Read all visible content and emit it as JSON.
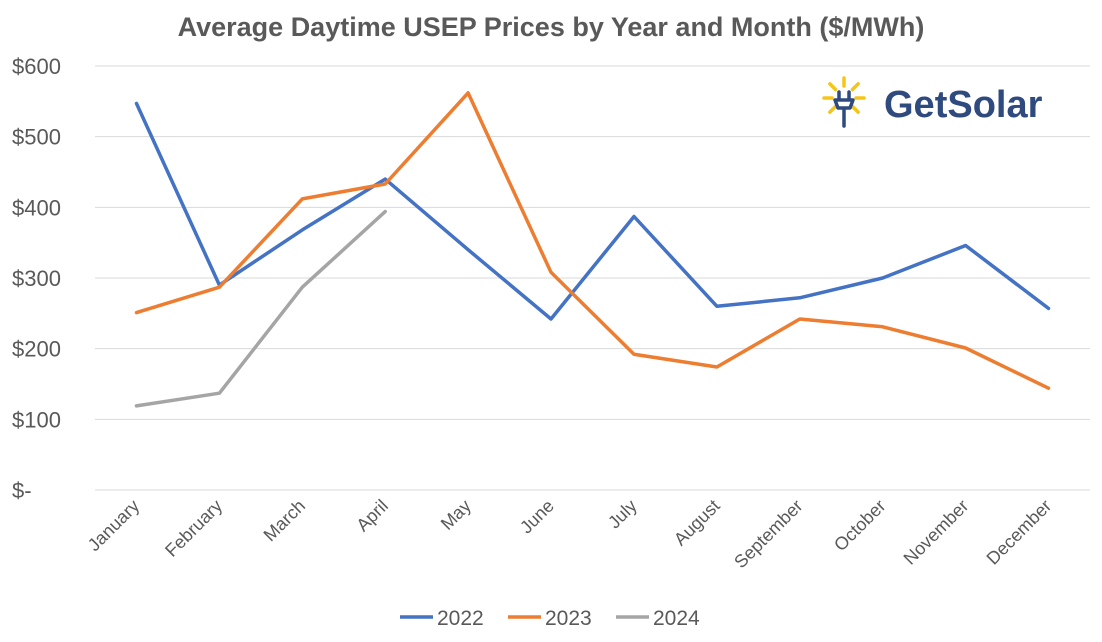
{
  "chart_data": {
    "type": "line",
    "title": "Average Daytime USEP Prices by Year and Month ($/MWh)",
    "xlabel": "",
    "ylabel": "",
    "categories": [
      "January",
      "February",
      "March",
      "April",
      "May",
      "June",
      "July",
      "August",
      "September",
      "October",
      "November",
      "December"
    ],
    "ylim": [
      0,
      600
    ],
    "yticks": [
      0,
      100,
      200,
      300,
      400,
      500,
      600
    ],
    "ytick_labels": [
      "$-",
      "$100",
      "$200",
      "$300",
      "$400",
      "$500",
      "$600"
    ],
    "grid": true,
    "legend_position": "bottom",
    "series": [
      {
        "name": "2022",
        "color": "#4472c4",
        "values": [
          547,
          290,
          368,
          440,
          340,
          242,
          387,
          260,
          272,
          300,
          346,
          257
        ]
      },
      {
        "name": "2023",
        "color": "#ed7d31",
        "values": [
          251,
          287,
          412,
          433,
          562,
          308,
          192,
          174,
          242,
          231,
          201,
          144
        ]
      },
      {
        "name": "2024",
        "color": "#a5a5a5",
        "values": [
          119,
          137,
          287,
          394,
          null,
          null,
          null,
          null,
          null,
          null,
          null,
          null
        ]
      }
    ]
  },
  "logo": {
    "text": "GetSolar",
    "icon": "solar-plug-icon",
    "text_color": "#2f4a7e",
    "ray_color": "#f5c518",
    "plug_color": "#2f4a7e"
  }
}
